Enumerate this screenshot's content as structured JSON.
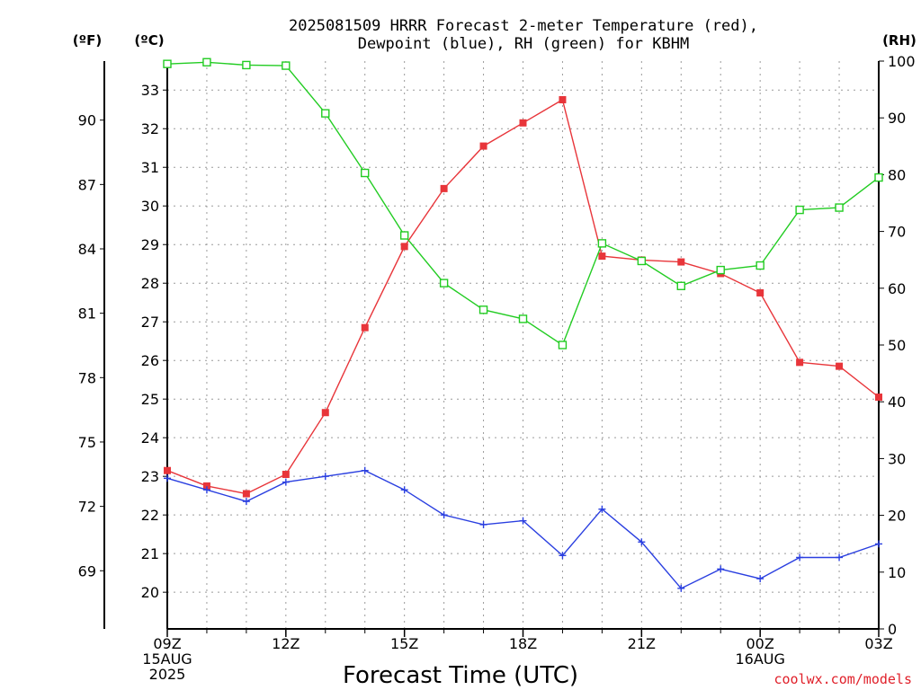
{
  "chart_data": {
    "type": "line",
    "title_line1": "2025081509 HRRR Forecast 2-meter Temperature (red),",
    "title_line2": "Dewpoint (blue), RH (green) for KBHM",
    "xlabel": "Forecast Time (UTC)",
    "credit": "coolwx.com/models",
    "unit_f": "(ºF)",
    "unit_c": "(ºC)",
    "unit_rh": "(RH)",
    "x_hours": [
      0,
      1,
      2,
      3,
      4,
      5,
      6,
      7,
      8,
      9,
      10,
      11,
      12,
      13,
      14,
      15,
      16,
      17,
      18
    ],
    "x_range": [
      0,
      18
    ],
    "x_ticks": [
      {
        "h": 0,
        "lines": [
          "09Z",
          "15AUG",
          "2025"
        ]
      },
      {
        "h": 3,
        "lines": [
          "12Z"
        ]
      },
      {
        "h": 6,
        "lines": [
          "15Z"
        ]
      },
      {
        "h": 9,
        "lines": [
          "18Z"
        ]
      },
      {
        "h": 12,
        "lines": [
          "21Z"
        ]
      },
      {
        "h": 15,
        "lines": [
          "00Z",
          "16AUG"
        ]
      },
      {
        "h": 18,
        "lines": [
          "03Z"
        ]
      }
    ],
    "ylim_c": [
      19.05,
      33.75
    ],
    "y_ticks_c": [
      20,
      21,
      22,
      23,
      24,
      25,
      26,
      27,
      28,
      29,
      30,
      31,
      32,
      33
    ],
    "y_ticks_f": [
      69,
      72,
      75,
      78,
      81,
      84,
      87,
      90
    ],
    "ylim_rh": [
      0,
      100
    ],
    "y_ticks_rh": [
      0,
      10,
      20,
      30,
      40,
      50,
      60,
      70,
      80,
      90,
      100
    ],
    "grid": true,
    "series": [
      {
        "name": "Temperature",
        "color": "#e8353a",
        "marker": "filled-square",
        "axis": "c",
        "values": [
          23.15,
          22.75,
          22.55,
          23.05,
          24.65,
          26.85,
          28.95,
          30.45,
          31.55,
          32.15,
          32.75,
          28.7,
          28.6,
          28.55,
          28.25,
          27.75,
          25.95,
          25.85,
          25.05
        ]
      },
      {
        "name": "Dewpoint",
        "color": "#2a3fe0",
        "marker": "plus",
        "axis": "c",
        "values": [
          22.95,
          22.65,
          22.35,
          22.85,
          23.0,
          23.15,
          22.65,
          22.0,
          21.75,
          21.85,
          20.95,
          22.15,
          21.3,
          20.1,
          20.6,
          20.35,
          20.9,
          20.9,
          21.25
        ]
      },
      {
        "name": "RH",
        "color": "#22cc22",
        "marker": "open-square",
        "axis": "rh",
        "values": [
          99.5,
          99.8,
          99.3,
          99.2,
          90.8,
          80.3,
          69.3,
          60.9,
          56.2,
          54.6,
          50.0,
          67.9,
          64.8,
          60.4,
          63.2,
          64.0,
          73.8,
          74.2,
          79.5
        ]
      }
    ]
  }
}
